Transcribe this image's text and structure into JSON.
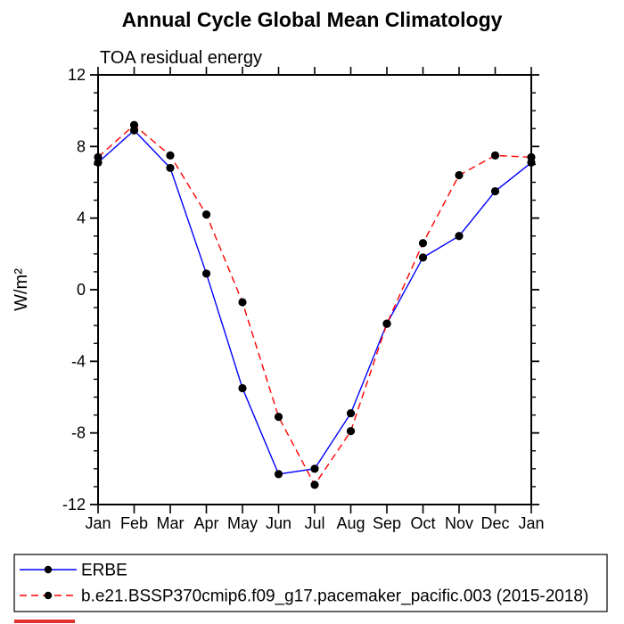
{
  "title": "Annual Cycle Global Mean Climatology",
  "subtitle": "TOA residual energy",
  "chart_data": {
    "type": "line",
    "title": "Annual Cycle Global Mean Climatology",
    "subtitle": "TOA residual energy",
    "xlabel": "",
    "ylabel": "W/m²",
    "categories": [
      "Jan",
      "Feb",
      "Mar",
      "Apr",
      "May",
      "Jun",
      "Jul",
      "Aug",
      "Sep",
      "Oct",
      "Nov",
      "Dec",
      "Jan"
    ],
    "ylim": [
      -12,
      12
    ],
    "ytick_major_step": 4,
    "ytick_minor_step": 1,
    "ytick_labels": [
      "-12",
      "-8",
      "-4",
      "0",
      "4",
      "8",
      "12"
    ],
    "grid": false,
    "legend_position": "bottom-left-box",
    "axis_color": "#000000",
    "marker_color": "#000000",
    "series": [
      {
        "name": "ERBE",
        "color": "#0000ff",
        "line_style": "solid",
        "marker": "circle",
        "values": [
          7.1,
          8.9,
          6.8,
          0.9,
          -5.5,
          -10.3,
          -10.0,
          -6.9,
          -1.9,
          1.8,
          3.0,
          5.5,
          7.1
        ]
      },
      {
        "name": "b.e21.BSSP370cmip6.f09_g17.pacemaker_pacific.003 (2015-2018)",
        "color": "#ff0000",
        "line_style": "dashed",
        "marker": "circle",
        "values": [
          7.4,
          9.2,
          7.5,
          4.2,
          -0.7,
          -7.1,
          -10.9,
          -7.9,
          -1.9,
          2.6,
          6.4,
          7.5,
          7.4
        ]
      }
    ]
  }
}
